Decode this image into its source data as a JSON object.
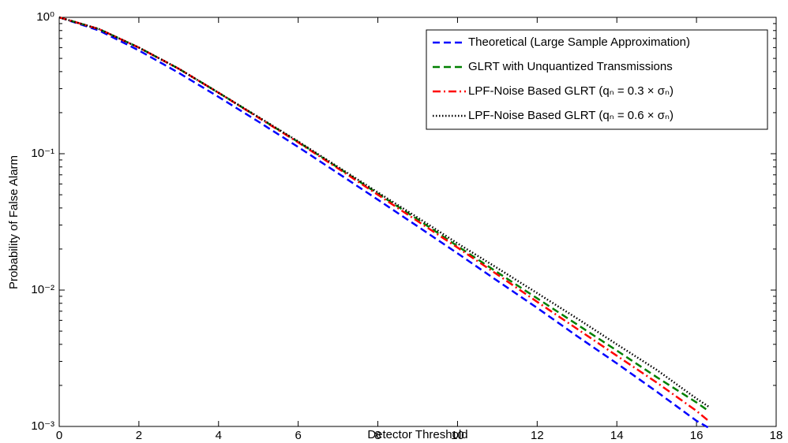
{
  "chart_data": {
    "type": "line",
    "xlabel": "Detector Threshold",
    "ylabel": "Probability of False Alarm",
    "x": [
      0,
      1,
      2,
      3,
      4,
      5,
      6,
      7,
      8,
      9,
      10,
      11,
      12,
      13,
      14,
      15,
      16,
      16.3
    ],
    "series": [
      {
        "name": "Theoretical (Large Sample Approximation)",
        "color": "#0000ff",
        "dash": "dashed",
        "values": [
          1,
          0.801,
          0.572,
          0.392,
          0.261,
          0.172,
          0.112,
          0.0719,
          0.046,
          0.0293,
          0.0186,
          0.0117,
          0.0074,
          0.0046,
          0.0029,
          0.0018,
          0.0011,
          0.00098
        ]
      },
      {
        "name": "GLRT with Unquantized Transmissions",
        "color": "#008000",
        "dash": "dashed",
        "values": [
          1,
          0.82,
          0.6,
          0.42,
          0.28,
          0.185,
          0.122,
          0.079,
          0.051,
          0.033,
          0.021,
          0.0135,
          0.0087,
          0.0056,
          0.0036,
          0.0023,
          0.0015,
          0.0013
        ]
      },
      {
        "name": "LPF-Noise Based GLRT (qₙ = 0.3 × σₙ)",
        "color": "#ff0000",
        "dash": "dashdot",
        "values": [
          1,
          0.82,
          0.6,
          0.42,
          0.28,
          0.184,
          0.121,
          0.078,
          0.05,
          0.032,
          0.0205,
          0.013,
          0.0082,
          0.0052,
          0.0033,
          0.0021,
          0.0013,
          0.0011
        ]
      },
      {
        "name": "LPF-Noise Based GLRT (qₙ = 0.6 × σₙ)",
        "color": "#000000",
        "dash": "dotted",
        "values": [
          1,
          0.82,
          0.6,
          0.42,
          0.28,
          0.186,
          0.123,
          0.08,
          0.052,
          0.034,
          0.022,
          0.0145,
          0.0095,
          0.0062,
          0.004,
          0.0026,
          0.0016,
          0.0014
        ]
      }
    ],
    "xlim": [
      0,
      18
    ],
    "xticks": [
      0,
      2,
      4,
      6,
      8,
      10,
      12,
      14,
      16,
      18
    ],
    "ylim": [
      0.001,
      1
    ],
    "yticks": [
      {
        "value": 0.001,
        "label": "10⁻³"
      },
      {
        "value": 0.01,
        "label": "10⁻²"
      },
      {
        "value": 0.1,
        "label": "10⁻¹"
      },
      {
        "value": 1,
        "label": "10⁰"
      }
    ],
    "log_y": true,
    "grid": false,
    "legend": "upper right"
  }
}
